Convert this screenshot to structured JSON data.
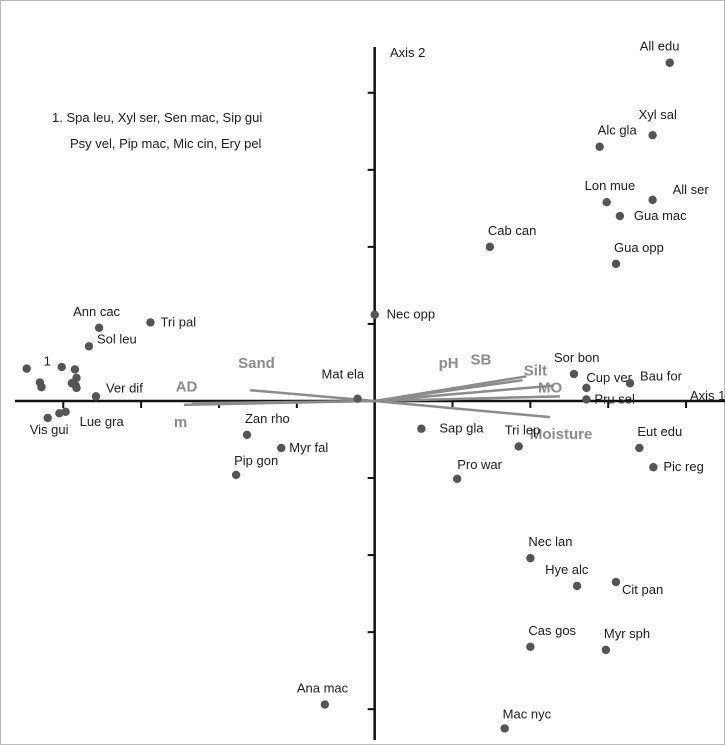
{
  "chart_data": {
    "type": "scatter",
    "title": "",
    "xlabel": "Axis 1",
    "ylabel": "Axis 2",
    "xlim": [
      -4.62,
      4.5
    ],
    "ylim": [
      -4.4,
      4.75
    ],
    "grid": false,
    "legend": "none",
    "colors": {
      "point": "#555555",
      "vector": "#8c8c8c",
      "axis": "#111111",
      "text": "#222222"
    },
    "annotations": [
      "1. Spa leu, Xyl ser, Sen mac, Sip gui",
      "Psy vel, Pip mac, Mic cin, Ery pel"
    ],
    "species": [
      {
        "label": "All edu",
        "x": 3.79,
        "y": 4.39
      },
      {
        "label": "Xyl sal",
        "x": 3.57,
        "y": 3.45
      },
      {
        "label": "Alc gla",
        "x": 2.89,
        "y": 3.3
      },
      {
        "label": "Lon mue",
        "x": 2.98,
        "y": 2.58
      },
      {
        "label": "All ser",
        "x": 3.57,
        "y": 2.61
      },
      {
        "label": "Gua mac",
        "x": 3.15,
        "y": 2.4
      },
      {
        "label": "Cab can",
        "x": 1.48,
        "y": 2.0
      },
      {
        "label": "Gua opp",
        "x": 3.1,
        "y": 1.78
      },
      {
        "label": "Nec opp",
        "x": 0.0,
        "y": 1.12
      },
      {
        "label": "Ann cac",
        "x": -3.54,
        "y": 0.95
      },
      {
        "label": "Tri pal",
        "x": -2.88,
        "y": 1.02
      },
      {
        "label": "Sol leu",
        "x": -3.67,
        "y": 0.71
      },
      {
        "label": "Sor bon",
        "x": 2.56,
        "y": 0.35
      },
      {
        "label": "Cup ver",
        "x": 2.72,
        "y": 0.17
      },
      {
        "label": "Bau for",
        "x": 3.28,
        "y": 0.23
      },
      {
        "label": "Pru sel",
        "x": 2.72,
        "y": 0.02
      },
      {
        "label": "Mat ela",
        "x": -0.22,
        "y": 0.03
      },
      {
        "label": "Ver dif",
        "x": -3.58,
        "y": 0.06
      },
      {
        "label": "Lue gra",
        "x": -3.97,
        "y": -0.14
      },
      {
        "label": "Vis gui",
        "x": -4.2,
        "y": -0.22
      },
      {
        "label": "Zan rho",
        "x": -1.64,
        "y": -0.44
      },
      {
        "label": "Myr fal",
        "x": -1.2,
        "y": -0.61
      },
      {
        "label": "Pip gon",
        "x": -1.78,
        "y": -0.96
      },
      {
        "label": "Sap gla",
        "x": 0.6,
        "y": -0.36
      },
      {
        "label": "Tri lep",
        "x": 1.85,
        "y": -0.59
      },
      {
        "label": "Pro war",
        "x": 1.06,
        "y": -1.01
      },
      {
        "label": "Eut edu",
        "x": 3.4,
        "y": -0.61
      },
      {
        "label": "Pic reg",
        "x": 3.58,
        "y": -0.86
      },
      {
        "label": "Nec lan",
        "x": 2.0,
        "y": -2.04
      },
      {
        "label": "Hye alc",
        "x": 2.6,
        "y": -2.4
      },
      {
        "label": "Cit pan",
        "x": 3.1,
        "y": -2.35
      },
      {
        "label": "Cas gos",
        "x": 2.0,
        "y": -3.19
      },
      {
        "label": "Myr sph",
        "x": 2.97,
        "y": -3.23
      },
      {
        "label": "Ana mac",
        "x": -0.64,
        "y": -3.94
      },
      {
        "label": "Mac nyc",
        "x": 1.67,
        "y": -4.25
      }
    ],
    "group_1_points": [
      {
        "label": "1",
        "x": -4.47,
        "y": 0.42
      },
      {
        "label": "",
        "x": -4.3,
        "y": 0.24
      },
      {
        "label": "",
        "x": -4.28,
        "y": 0.18
      },
      {
        "label": "",
        "x": -4.02,
        "y": 0.44
      },
      {
        "label": "",
        "x": -3.85,
        "y": 0.41
      },
      {
        "label": "",
        "x": -3.83,
        "y": 0.3
      },
      {
        "label": "",
        "x": -3.89,
        "y": 0.23
      },
      {
        "label": "",
        "x": -3.84,
        "y": 0.2
      },
      {
        "label": "",
        "x": -3.83,
        "y": 0.17
      },
      {
        "label": "",
        "x": -4.05,
        "y": -0.16
      }
    ],
    "env_vectors": [
      {
        "label": "AD",
        "x": -2.35,
        "y": -0.03
      },
      {
        "label": "m",
        "x": -2.45,
        "y": -0.05
      },
      {
        "label": "Sand",
        "x": -1.6,
        "y": 0.14
      },
      {
        "label": "pH",
        "x": 1.9,
        "y": 0.27
      },
      {
        "label": "SB",
        "x": 1.95,
        "y": 0.32
      },
      {
        "label": "Silt",
        "x": 2.3,
        "y": 0.2
      },
      {
        "label": "MO",
        "x": 2.38,
        "y": 0.06
      },
      {
        "label": "Moisture",
        "x": 2.25,
        "y": -0.21
      }
    ]
  }
}
